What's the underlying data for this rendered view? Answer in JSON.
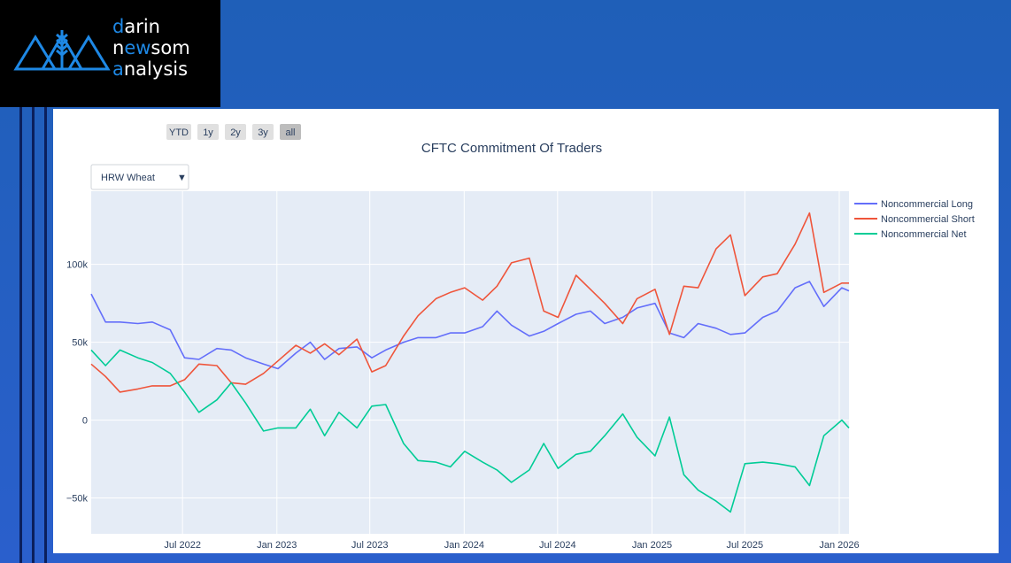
{
  "brand": {
    "line1_accent": "d",
    "line1_rest": "arin",
    "line2_pre": "n",
    "line2_accent": "ew",
    "line2_post": "som",
    "line3_accent": "a",
    "line3_rest": "nalysis"
  },
  "range_buttons": [
    "YTD",
    "1y",
    "2y",
    "3y",
    "all"
  ],
  "active_range": "all",
  "dropdown": {
    "value": "HRW Wheat",
    "arrow": "▼"
  },
  "colors": {
    "long": "#636efa",
    "short": "#ef553b",
    "net": "#00cc96",
    "plot_bg": "#e5ecf6",
    "button_bg": "#e0e0e0",
    "button_active": "#bdbdbd"
  },
  "chart_data": {
    "type": "line",
    "title": "CFTC Commitment Of Traders",
    "x_ticks": [
      "Jul 2022",
      "Jan 2023",
      "Jul 2023",
      "Jan 2024",
      "Jul 2024",
      "Jan 2025",
      "Jul 2025",
      "Jan 2026"
    ],
    "x_tick_dates": [
      "2022-07-01",
      "2023-01-01",
      "2023-07-01",
      "2024-01-01",
      "2024-07-01",
      "2025-01-01",
      "2025-07-01",
      "2026-01-01"
    ],
    "y_ticks": [
      "100k",
      "50k",
      "0",
      "−50k"
    ],
    "y_tick_values": [
      100000,
      50000,
      0,
      -50000
    ],
    "xlim": [
      "2022-01-04",
      "2026-01-20"
    ],
    "ylim": [
      -73000,
      147000
    ],
    "grid": true,
    "legend_position": "right",
    "x": [
      "2022-01-04",
      "2022-02-01",
      "2022-03-01",
      "2022-04-05",
      "2022-05-03",
      "2022-06-07",
      "2022-07-05",
      "2022-08-02",
      "2022-09-06",
      "2022-10-04",
      "2022-11-01",
      "2022-12-06",
      "2023-01-03",
      "2023-02-07",
      "2023-03-07",
      "2023-04-04",
      "2023-05-02",
      "2023-06-06",
      "2023-07-05",
      "2023-08-01",
      "2023-09-05",
      "2023-10-03",
      "2023-11-07",
      "2023-12-05",
      "2024-01-02",
      "2024-02-06",
      "2024-03-05",
      "2024-04-02",
      "2024-05-07",
      "2024-06-04",
      "2024-07-02",
      "2024-08-06",
      "2024-09-03",
      "2024-10-01",
      "2024-11-05",
      "2024-12-03",
      "2025-01-07",
      "2025-02-04",
      "2025-03-04",
      "2025-04-01",
      "2025-05-06",
      "2025-06-03",
      "2025-07-01",
      "2025-08-05",
      "2025-09-02",
      "2025-10-07",
      "2025-11-04",
      "2025-12-02",
      "2026-01-06",
      "2026-01-20"
    ],
    "series": [
      {
        "name": "Noncommercial Long",
        "key": "long",
        "values": [
          81000,
          63000,
          63000,
          62000,
          63000,
          58000,
          40000,
          39000,
          46000,
          45000,
          40000,
          36000,
          33000,
          43000,
          50000,
          39000,
          46000,
          47000,
          40000,
          45000,
          50000,
          53000,
          53000,
          56000,
          56000,
          60000,
          70000,
          61000,
          54000,
          57000,
          62000,
          68000,
          70000,
          62000,
          66000,
          72000,
          75000,
          56000,
          53000,
          62000,
          59000,
          55000,
          56000,
          66000,
          70000,
          85000,
          89000,
          73000,
          85000,
          83000
        ]
      },
      {
        "name": "Noncommercial Short",
        "key": "short",
        "values": [
          36000,
          28000,
          18000,
          20000,
          22000,
          22000,
          26000,
          36000,
          35000,
          24000,
          23000,
          30000,
          38000,
          48000,
          43000,
          49000,
          42000,
          52000,
          31000,
          35000,
          54000,
          67000,
          78000,
          82000,
          85000,
          77000,
          86000,
          101000,
          104000,
          70000,
          66000,
          93000,
          84000,
          75000,
          62000,
          78000,
          84000,
          55000,
          86000,
          85000,
          110000,
          119000,
          80000,
          92000,
          94000,
          113000,
          133000,
          82000,
          88000,
          88000
        ]
      },
      {
        "name": "Noncommercial Net",
        "key": "net",
        "values": [
          45000,
          35000,
          45000,
          40000,
          37000,
          30000,
          18000,
          5000,
          13000,
          24000,
          11000,
          -7000,
          -5000,
          -5000,
          7000,
          -10000,
          5000,
          -5000,
          9000,
          10000,
          -15000,
          -26000,
          -27000,
          -30000,
          -20000,
          -27000,
          -32000,
          -40000,
          -32000,
          -15000,
          -31000,
          -22000,
          -20000,
          -10000,
          4000,
          -11000,
          -23000,
          2000,
          -35000,
          -45000,
          -52000,
          -59000,
          -28000,
          -27000,
          -28000,
          -30000,
          -42000,
          -10000,
          0,
          -5000
        ]
      }
    ]
  }
}
